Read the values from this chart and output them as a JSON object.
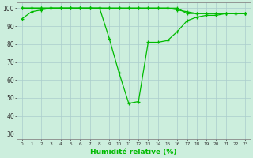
{
  "x": [
    0,
    1,
    2,
    3,
    4,
    5,
    6,
    7,
    8,
    9,
    10,
    11,
    12,
    13,
    14,
    15,
    16,
    17,
    18,
    19,
    20,
    21,
    22,
    23
  ],
  "y_main": [
    94,
    98,
    99,
    100,
    100,
    100,
    100,
    100,
    100,
    83,
    64,
    47,
    48,
    81,
    81,
    82,
    87,
    93,
    95,
    96,
    96,
    97,
    97,
    97
  ],
  "y_top1": [
    100,
    100,
    100,
    100,
    100,
    100,
    100,
    100,
    100,
    100,
    100,
    100,
    100,
    100,
    100,
    100,
    100,
    97,
    97,
    97,
    97,
    97,
    97,
    97
  ],
  "y_top2": [
    100,
    100,
    100,
    100,
    100,
    100,
    100,
    100,
    100,
    100,
    100,
    100,
    100,
    100,
    100,
    100,
    99,
    98,
    97,
    97,
    97,
    97,
    97,
    97
  ],
  "line_color": "#00bb00",
  "bg_color": "#cceedd",
  "grid_color": "#aacccc",
  "xlabel": "Humidité relative (%)",
  "ylim": [
    27,
    103
  ],
  "yticks": [
    30,
    40,
    50,
    60,
    70,
    80,
    90,
    100
  ],
  "marker": "+",
  "markersize": 3,
  "linewidth": 0.9
}
